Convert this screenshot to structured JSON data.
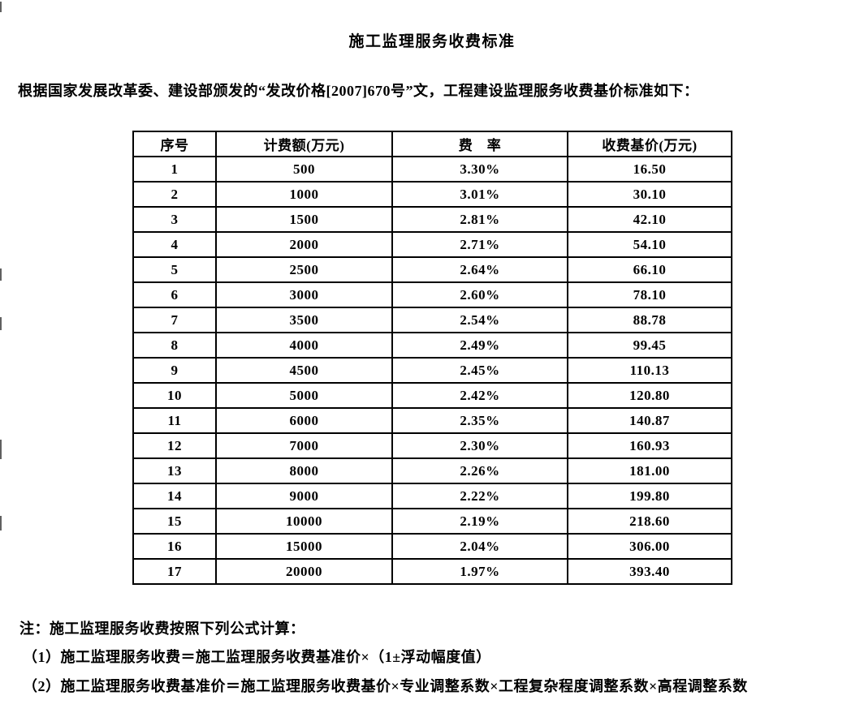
{
  "page": {
    "title": "施工监理服务收费标准",
    "intro": "根据国家发展改革委、建设部颁发的“发改价格[2007]670号”文，工程建设监理服务收费基价标准如下：",
    "notes": {
      "heading": "注：施工监理服务收费按照下列公式计算：",
      "formula1": "（1）施工监理服务收费＝施工监理服务收费基准价×（1±浮动幅度值）",
      "formula2": "（2）施工监理服务收费基准价＝施工监理服务收费基价×专业调整系数×工程复杂程度调整系数×高程调整系数"
    }
  },
  "table": {
    "headers": [
      "序号",
      "计费额(万元)",
      "费　率",
      "收费基价(万元)"
    ],
    "rows": [
      [
        "1",
        "500",
        "3.30%",
        "16.50"
      ],
      [
        "2",
        "1000",
        "3.01%",
        "30.10"
      ],
      [
        "3",
        "1500",
        "2.81%",
        "42.10"
      ],
      [
        "4",
        "2000",
        "2.71%",
        "54.10"
      ],
      [
        "5",
        "2500",
        "2.64%",
        "66.10"
      ],
      [
        "6",
        "3000",
        "2.60%",
        "78.10"
      ],
      [
        "7",
        "3500",
        "2.54%",
        "88.78"
      ],
      [
        "8",
        "4000",
        "2.49%",
        "99.45"
      ],
      [
        "9",
        "4500",
        "2.45%",
        "110.13"
      ],
      [
        "10",
        "5000",
        "2.42%",
        "120.80"
      ],
      [
        "11",
        "6000",
        "2.35%",
        "140.87"
      ],
      [
        "12",
        "7000",
        "2.30%",
        "160.93"
      ],
      [
        "13",
        "8000",
        "2.26%",
        "181.00"
      ],
      [
        "14",
        "9000",
        "2.22%",
        "199.80"
      ],
      [
        "15",
        "10000",
        "2.19%",
        "218.60"
      ],
      [
        "16",
        "15000",
        "2.04%",
        "306.00"
      ],
      [
        "17",
        "20000",
        "1.97%",
        "393.40"
      ]
    ],
    "colors": {
      "text": "#000000",
      "border": "#000000",
      "background": "#ffffff"
    }
  }
}
